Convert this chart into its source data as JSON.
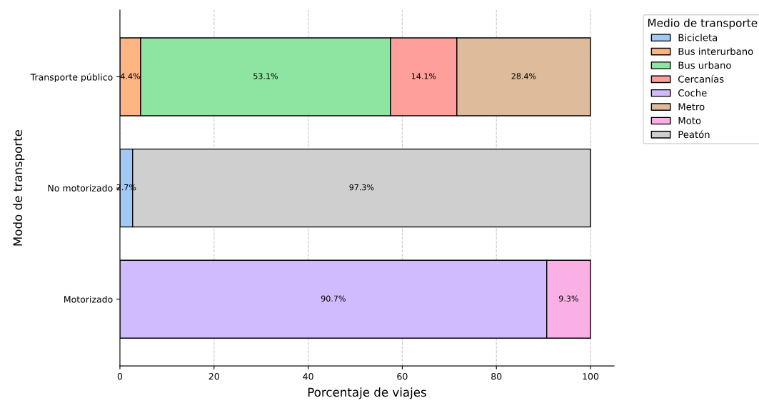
{
  "chart_data": {
    "type": "bar",
    "orientation": "horizontal",
    "stacked": true,
    "xlabel": "Porcentaje de viajes",
    "ylabel": "Modo de transporte",
    "legend_title": "Medio de transporte",
    "categories": [
      "Transporte público",
      "No motorizado",
      "Motorizado"
    ],
    "series": [
      {
        "name": "Bicicleta",
        "color": "#a1c9f4",
        "values": [
          null,
          2.7,
          null
        ],
        "value_labels": [
          null,
          "2.7%",
          null
        ]
      },
      {
        "name": "Bus interurbano",
        "color": "#ffb482",
        "values": [
          4.4,
          null,
          null
        ],
        "value_labels": [
          "4.4%",
          null,
          null
        ]
      },
      {
        "name": "Bus urbano",
        "color": "#8de5a1",
        "values": [
          53.1,
          null,
          null
        ],
        "value_labels": [
          "53.1%",
          null,
          null
        ]
      },
      {
        "name": "Cercanías",
        "color": "#ff9f9b",
        "values": [
          14.1,
          null,
          null
        ],
        "value_labels": [
          "14.1%",
          null,
          null
        ]
      },
      {
        "name": "Coche",
        "color": "#d0bbff",
        "values": [
          null,
          null,
          90.7
        ],
        "value_labels": [
          null,
          null,
          "90.7%"
        ]
      },
      {
        "name": "Metro",
        "color": "#debb9b",
        "values": [
          28.4,
          null,
          null
        ],
        "value_labels": [
          "28.4%",
          null,
          null
        ]
      },
      {
        "name": "Moto",
        "color": "#fab0e4",
        "values": [
          null,
          null,
          9.3
        ],
        "value_labels": [
          null,
          null,
          "9.3%"
        ]
      },
      {
        "name": "Peatón",
        "color": "#cfcfcf",
        "values": [
          null,
          97.3,
          null
        ],
        "value_labels": [
          null,
          "97.3%",
          null
        ]
      }
    ],
    "xlim": [
      0,
      105
    ],
    "xticks": [
      0,
      20,
      40,
      60,
      80,
      100
    ],
    "grid": "x",
    "legend": "top right"
  }
}
